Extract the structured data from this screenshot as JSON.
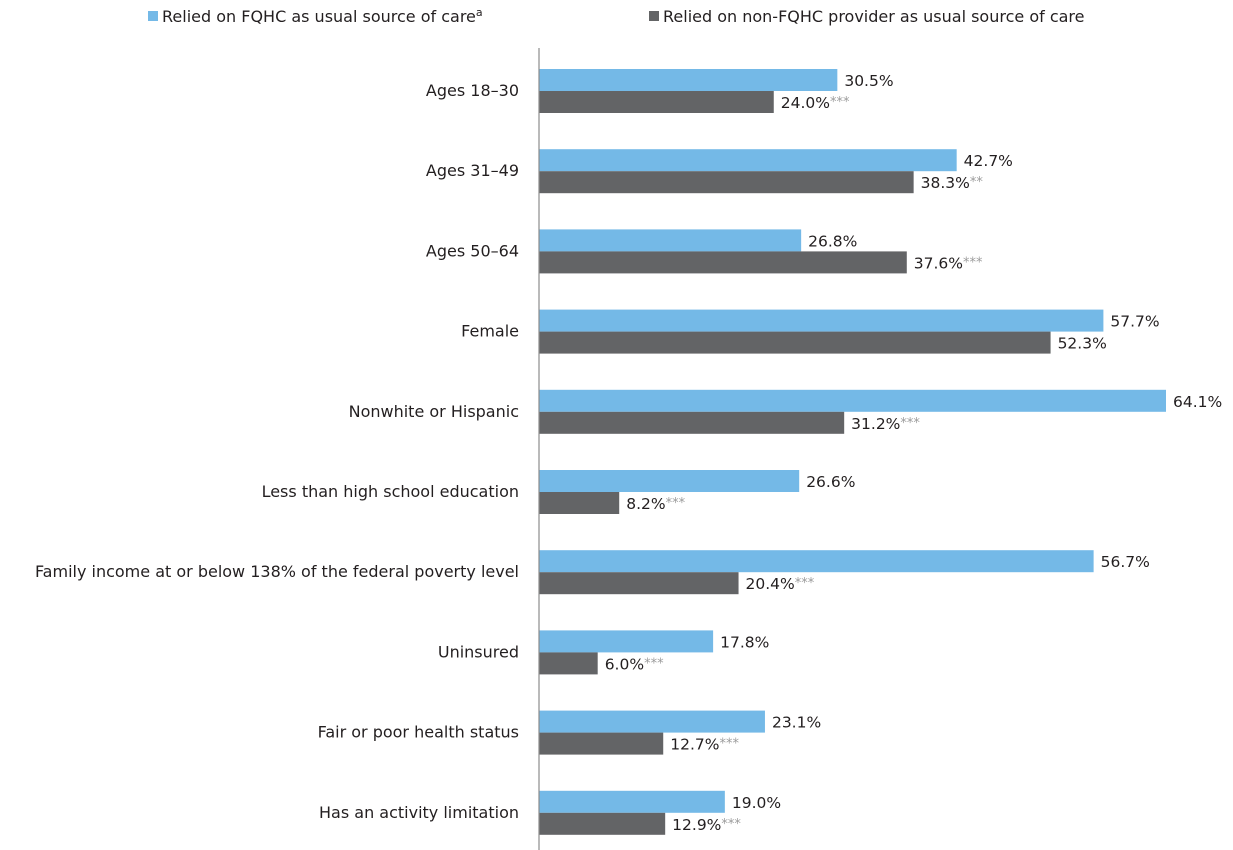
{
  "chart_data": {
    "type": "bar",
    "orientation": "horizontal",
    "legend_position": "top",
    "grid": false,
    "xlim": [
      0,
      64.1
    ],
    "colors": {
      "fqhc": "#74b9e7",
      "non_fqhc": "#636466"
    },
    "categories": [
      "Ages 18–30",
      "Ages 31–49",
      "Ages 50–64",
      "Female",
      "Nonwhite or Hispanic",
      "Less than high school education",
      "Family income at or below 138% of the federal poverty level",
      "Uninsured",
      "Fair or poor health status",
      "Has an activity limitation"
    ],
    "series": [
      {
        "name": "Relied on FQHC as usual source of care",
        "name_superscript": "a",
        "values": [
          30.5,
          42.7,
          26.8,
          57.7,
          64.1,
          26.6,
          56.7,
          17.8,
          23.1,
          19.0
        ],
        "labels": [
          "30.5%",
          "42.7%",
          "26.8%",
          "57.7%",
          "64.1%",
          "26.6%",
          "56.7%",
          "17.8%",
          "23.1%",
          "19.0%"
        ],
        "significance": [
          "",
          "",
          "",
          "",
          "",
          "",
          "",
          "",
          "",
          ""
        ]
      },
      {
        "name": "Relied on non-FQHC provider as usual source of care",
        "name_superscript": "",
        "values": [
          24.0,
          38.3,
          37.6,
          52.3,
          31.2,
          8.2,
          20.4,
          6.0,
          12.7,
          12.9
        ],
        "labels": [
          "24.0%",
          "38.3%",
          "37.6%",
          "52.3%",
          "31.2%",
          "8.2%",
          "20.4%",
          "6.0%",
          "12.7%",
          "12.9%"
        ],
        "significance": [
          "***",
          "**",
          "***",
          "",
          "***",
          "***",
          "***",
          "***",
          "***",
          "***"
        ]
      }
    ]
  }
}
